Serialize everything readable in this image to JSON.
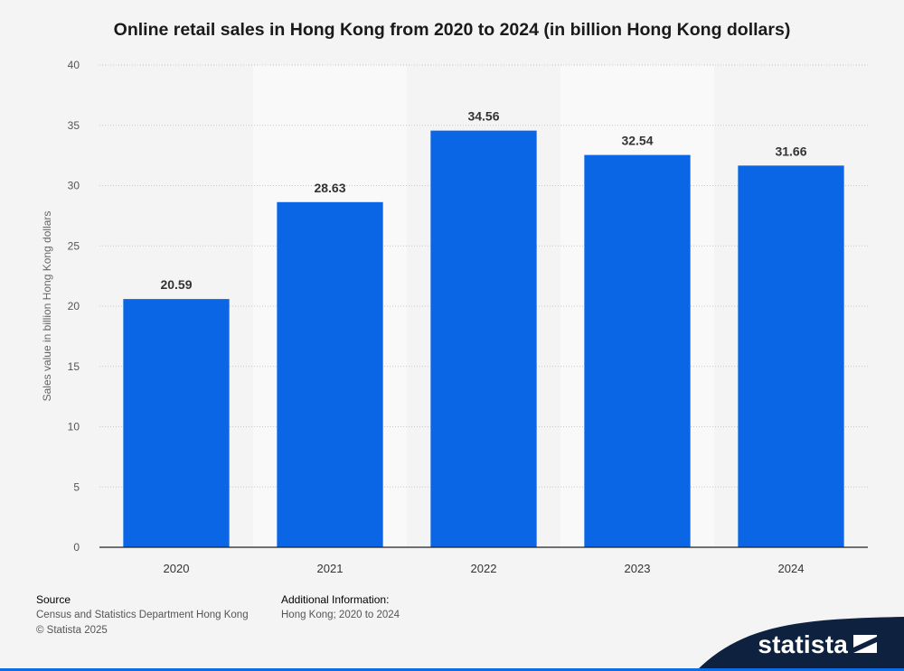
{
  "chart_data": {
    "type": "bar",
    "title": "Online retail sales in Hong Kong from 2020 to 2024 (in billion Hong Kong dollars)",
    "xlabel": "",
    "ylabel": "Sales value in billion Hong Kong dollars",
    "categories": [
      "2020",
      "2021",
      "2022",
      "2023",
      "2024"
    ],
    "values": [
      20.59,
      28.63,
      34.56,
      32.54,
      31.66
    ],
    "value_labels": [
      "20.59",
      "28.63",
      "34.56",
      "32.54",
      "31.66"
    ],
    "ylim": [
      0,
      40
    ],
    "yticks": [
      "0",
      "5",
      "10",
      "15",
      "20",
      "25",
      "30",
      "35",
      "40"
    ],
    "grid": "horizontal dotted",
    "bar_color": "#0a66e4",
    "band_color": "#f9f9f9"
  },
  "footer": {
    "source_heading": "Source",
    "source_line": "Census and Statistics Department Hong Kong",
    "copyright": "© Statista 2025",
    "info_heading": "Additional Information:",
    "info_line": "Hong Kong; 2020 to 2024"
  },
  "brand": {
    "name": "statista",
    "band_color": "#0e2240"
  }
}
